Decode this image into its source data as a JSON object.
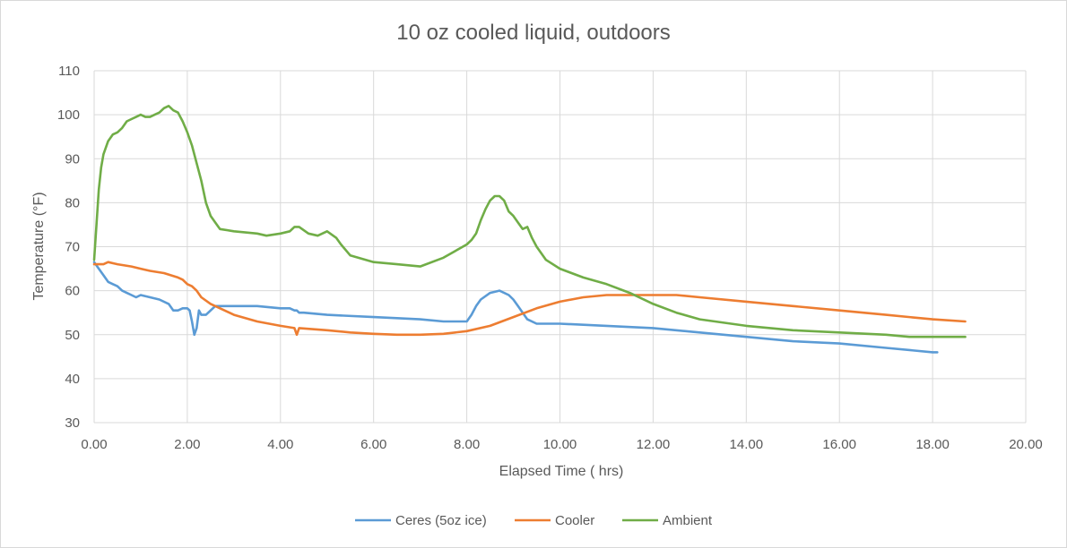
{
  "chart_data": {
    "type": "line",
    "title": "10 oz cooled liquid, outdoors",
    "xlabel": "Elapsed Time ( hrs)",
    "ylabel": "Temperature (°F)",
    "xlim": [
      0,
      20
    ],
    "ylim": [
      30,
      110
    ],
    "x_ticks": [
      "0.00",
      "2.00",
      "4.00",
      "6.00",
      "8.00",
      "10.00",
      "12.00",
      "14.00",
      "16.00",
      "18.00",
      "20.00"
    ],
    "y_ticks": [
      "30",
      "40",
      "50",
      "60",
      "70",
      "80",
      "90",
      "100",
      "110"
    ],
    "grid": true,
    "legend_position": "bottom",
    "series": [
      {
        "name": "Ceres (5oz ice)",
        "color": "#5b9bd5",
        "x": [
          0,
          0.1,
          0.2,
          0.3,
          0.4,
          0.5,
          0.6,
          0.7,
          0.8,
          0.9,
          1.0,
          1.2,
          1.4,
          1.6,
          1.7,
          1.8,
          1.9,
          2.0,
          2.05,
          2.1,
          2.15,
          2.2,
          2.25,
          2.3,
          2.4,
          2.5,
          2.6,
          2.8,
          3.0,
          3.5,
          4.0,
          4.2,
          4.3,
          4.35,
          4.4,
          4.5,
          5.0,
          6.0,
          7.0,
          7.5,
          8.0,
          8.1,
          8.2,
          8.3,
          8.5,
          8.7,
          8.9,
          9.0,
          9.1,
          9.3,
          9.5,
          10.0,
          11.0,
          12.0,
          13.0,
          14.0,
          15.0,
          16.0,
          17.0,
          18.0,
          18.1
        ],
        "values": [
          66.5,
          65,
          63.5,
          62,
          61.5,
          61,
          60,
          59.5,
          59,
          58.5,
          59,
          58.5,
          58,
          57,
          55.5,
          55.5,
          56,
          56,
          55.5,
          53,
          50,
          51.5,
          55.5,
          54.5,
          54.5,
          55.5,
          56.5,
          56.5,
          56.5,
          56.5,
          56,
          56,
          55.5,
          55.5,
          55,
          55,
          54.5,
          54,
          53.5,
          53,
          53,
          54.5,
          56.5,
          58,
          59.5,
          60,
          59,
          58,
          56.5,
          53.5,
          52.5,
          52.5,
          52,
          51.5,
          50.5,
          49.5,
          48.5,
          48,
          47,
          46,
          46
        ]
      },
      {
        "name": "Cooler",
        "color": "#ed7d31",
        "x": [
          0,
          0.1,
          0.2,
          0.3,
          0.5,
          0.8,
          1.0,
          1.2,
          1.5,
          1.8,
          1.9,
          2.0,
          2.1,
          2.2,
          2.3,
          2.5,
          3.0,
          3.5,
          4.0,
          4.3,
          4.35,
          4.4,
          5.0,
          5.5,
          6.0,
          6.5,
          7.0,
          7.5,
          8.0,
          8.5,
          9.0,
          9.5,
          10.0,
          10.5,
          11.0,
          11.5,
          12.0,
          12.5,
          13.0,
          14.0,
          15.0,
          16.0,
          17.0,
          18.0,
          18.7
        ],
        "values": [
          66,
          66,
          66,
          66.5,
          66,
          65.5,
          65,
          64.5,
          64,
          63,
          62.5,
          61.5,
          61,
          60,
          58.5,
          57,
          54.5,
          53,
          52,
          51.5,
          50,
          51.5,
          51,
          50.5,
          50.2,
          50,
          50,
          50.2,
          50.8,
          52,
          54,
          56,
          57.5,
          58.5,
          59,
          59,
          59,
          59,
          58.5,
          57.5,
          56.5,
          55.5,
          54.5,
          53.5,
          53
        ]
      },
      {
        "name": "Ambient",
        "color": "#70ad47",
        "x": [
          0,
          0.05,
          0.1,
          0.15,
          0.2,
          0.3,
          0.4,
          0.5,
          0.6,
          0.7,
          0.8,
          0.9,
          1.0,
          1.1,
          1.2,
          1.3,
          1.4,
          1.5,
          1.6,
          1.7,
          1.8,
          1.9,
          2.0,
          2.1,
          2.2,
          2.3,
          2.4,
          2.5,
          2.6,
          2.7,
          3.0,
          3.5,
          3.7,
          4.0,
          4.2,
          4.3,
          4.4,
          4.6,
          4.8,
          5.0,
          5.2,
          5.3,
          5.5,
          6.0,
          6.5,
          7.0,
          7.5,
          8.0,
          8.1,
          8.2,
          8.3,
          8.4,
          8.5,
          8.6,
          8.7,
          8.8,
          8.9,
          9.0,
          9.1,
          9.2,
          9.3,
          9.4,
          9.5,
          9.7,
          10.0,
          10.5,
          11.0,
          11.5,
          12.0,
          12.5,
          13.0,
          14.0,
          15.0,
          16.0,
          17.0,
          17.5,
          18.0,
          18.7
        ],
        "values": [
          67,
          75,
          83,
          88,
          91,
          94,
          95.5,
          96,
          97,
          98.5,
          99,
          99.5,
          100,
          99.5,
          99.5,
          100,
          100.5,
          101.5,
          102,
          101,
          100.5,
          98.5,
          96,
          93,
          89,
          85,
          80,
          77,
          75.5,
          74,
          73.5,
          73,
          72.5,
          73,
          73.5,
          74.5,
          74.5,
          73,
          72.5,
          73.5,
          72,
          70.5,
          68,
          66.5,
          66,
          65.5,
          67.5,
          70.5,
          71.5,
          73,
          76,
          78.5,
          80.5,
          81.5,
          81.5,
          80.5,
          78,
          77,
          75.5,
          74,
          74.5,
          72,
          70,
          67,
          65,
          63,
          61.5,
          59.5,
          57,
          55,
          53.5,
          52,
          51,
          50.5,
          50,
          49.5,
          49.5,
          49.5
        ]
      }
    ]
  }
}
